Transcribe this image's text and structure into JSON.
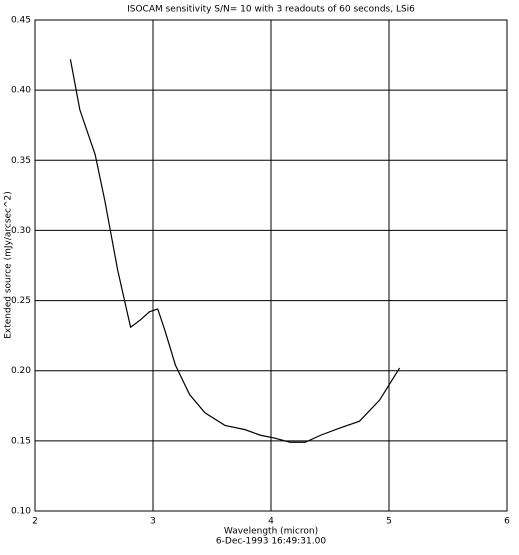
{
  "chart_data": {
    "type": "line",
    "title": "ISOCAM sensitivity S/N= 10 with 3 readouts of 60 seconds, LSi6",
    "x_label": "Wavelength (micron)",
    "y_label": "Extended source (mJy/arcsec^2)",
    "footer": "6-Dec-1993 16:49:31.00",
    "xlim": [
      2,
      6
    ],
    "xticks": [
      2,
      3,
      4,
      5,
      6
    ],
    "ylim": [
      0.1,
      0.45
    ],
    "yticks": [
      {
        "value": 0.1,
        "label": "0.10"
      },
      {
        "value": 0.15,
        "label": "0.15"
      },
      {
        "value": 0.2,
        "label": "0.20"
      },
      {
        "value": 0.25,
        "label": "0.25"
      },
      {
        "value": 0.3,
        "label": "0.30"
      },
      {
        "value": 0.35,
        "label": "0.35"
      },
      {
        "value": 0.4,
        "label": "0.40"
      },
      {
        "value": 0.45,
        "label": "0.45"
      }
    ],
    "grid": true,
    "series": [
      {
        "color": "#000000",
        "x": [
          2.3,
          2.38,
          2.51,
          2.59,
          2.7,
          2.81,
          2.89,
          2.97,
          3.04,
          3.1,
          3.19,
          3.31,
          3.44,
          3.61,
          3.78,
          3.91,
          4.03,
          4.16,
          4.29,
          4.42,
          4.58,
          4.75,
          4.92,
          5.09
        ],
        "values": [
          0.422,
          0.386,
          0.354,
          0.322,
          0.272,
          0.231,
          0.236,
          0.242,
          0.244,
          0.229,
          0.204,
          0.183,
          0.17,
          0.161,
          0.158,
          0.154,
          0.152,
          0.149,
          0.149,
          0.154,
          0.159,
          0.164,
          0.179,
          0.202
        ]
      }
    ]
  }
}
